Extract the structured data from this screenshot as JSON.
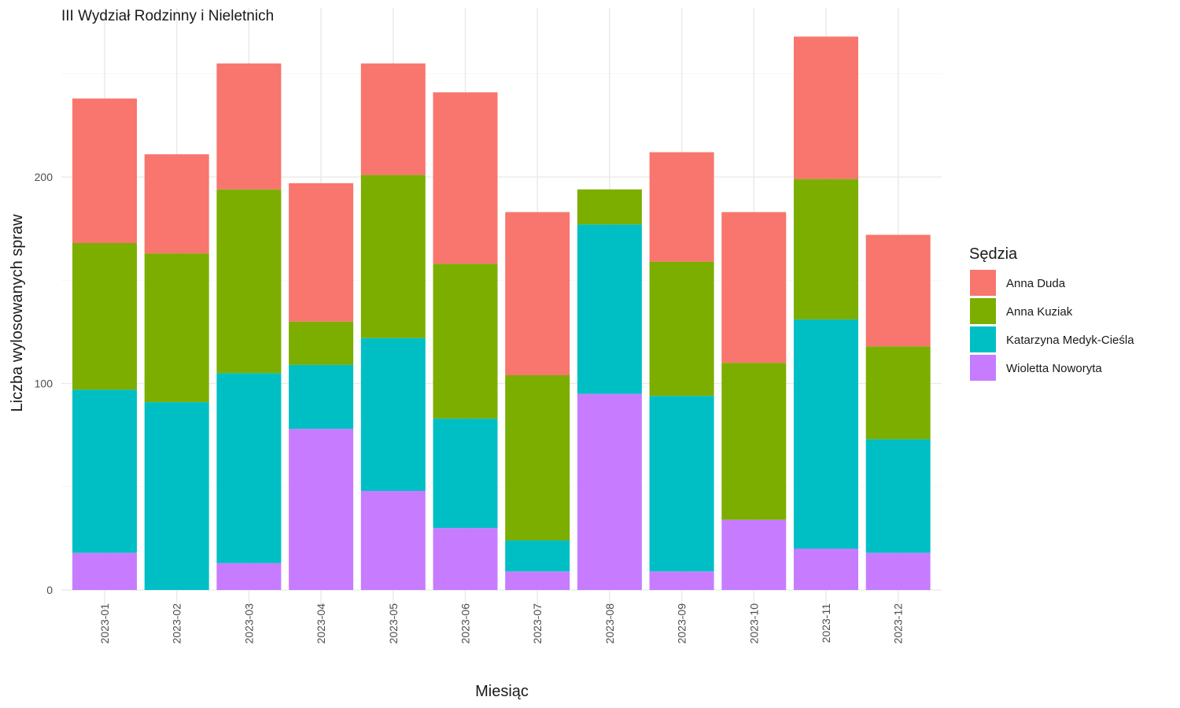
{
  "chart_data": {
    "type": "bar",
    "stacked": true,
    "title": "III Wydział Rodzinny i Nieletnich",
    "xlabel": "Miesiąc",
    "ylabel": "Liczba wylosowanych spraw",
    "ylim": [
      0,
      270
    ],
    "yticks": [
      0,
      100,
      200
    ],
    "grid": true,
    "legend": {
      "title": "Sędzia",
      "position": "right"
    },
    "categories": [
      "2023-01",
      "2023-02",
      "2023-03",
      "2023-04",
      "2023-05",
      "2023-06",
      "2023-07",
      "2023-08",
      "2023-09",
      "2023-10",
      "2023-11",
      "2023-12"
    ],
    "series": [
      {
        "name": "Anna Duda",
        "color": "#F8766D",
        "values": [
          70,
          48,
          61,
          67,
          54,
          83,
          79,
          0,
          53,
          73,
          69,
          54
        ]
      },
      {
        "name": "Anna Kuziak",
        "color": "#7CAE00",
        "values": [
          71,
          72,
          89,
          21,
          79,
          75,
          80,
          17,
          65,
          76,
          68,
          45
        ]
      },
      {
        "name": "Katarzyna Medyk-Cieśla",
        "color": "#00BFC4",
        "values": [
          79,
          91,
          92,
          31,
          74,
          53,
          15,
          82,
          85,
          0,
          111,
          55
        ]
      },
      {
        "name": "Wioletta Noworyta",
        "color": "#C77CFF",
        "values": [
          18,
          0,
          13,
          78,
          48,
          30,
          9,
          95,
          9,
          34,
          20,
          18
        ]
      }
    ]
  }
}
